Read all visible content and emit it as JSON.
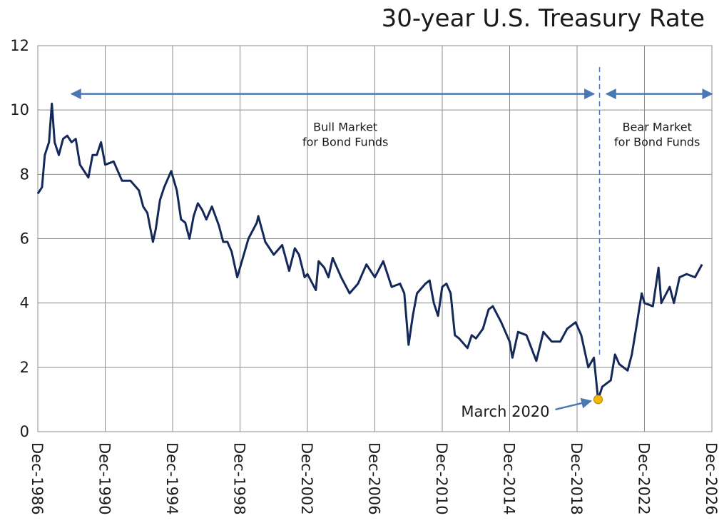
{
  "chart_data": {
    "type": "line",
    "title": "30-year U.S. Treasury Rate",
    "xlabel": "",
    "ylabel": "",
    "ylim": [
      0,
      12
    ],
    "yticks": [
      0,
      2,
      4,
      6,
      8,
      10,
      12
    ],
    "xlim": [
      "1986-12",
      "2026-12"
    ],
    "xtick_labels": [
      "Dec-1986",
      "Dec-1990",
      "Dec-1994",
      "Dec-1998",
      "Dec-2002",
      "Dec-2006",
      "Dec-2010",
      "Dec-2014",
      "Dec-2018",
      "Dec-2022",
      "Dec-2026"
    ],
    "grid": true,
    "series": [
      {
        "color": "#14285a",
        "points": [
          [
            "1986-12",
            7.4
          ],
          [
            "1987-03",
            7.6
          ],
          [
            "1987-05",
            8.6
          ],
          [
            "1987-08",
            9.0
          ],
          [
            "1987-10",
            10.2
          ],
          [
            "1987-12",
            9.0
          ],
          [
            "1988-03",
            8.6
          ],
          [
            "1988-06",
            9.1
          ],
          [
            "1988-09",
            9.2
          ],
          [
            "1988-12",
            9.0
          ],
          [
            "1989-03",
            9.1
          ],
          [
            "1989-06",
            8.3
          ],
          [
            "1989-09",
            8.1
          ],
          [
            "1989-12",
            7.9
          ],
          [
            "1990-03",
            8.6
          ],
          [
            "1990-06",
            8.6
          ],
          [
            "1990-09",
            9.0
          ],
          [
            "1990-12",
            8.3
          ],
          [
            "1991-06",
            8.4
          ],
          [
            "1991-12",
            7.8
          ],
          [
            "1992-06",
            7.8
          ],
          [
            "1992-12",
            7.5
          ],
          [
            "1993-03",
            7.0
          ],
          [
            "1993-06",
            6.8
          ],
          [
            "1993-10",
            5.9
          ],
          [
            "1993-12",
            6.3
          ],
          [
            "1994-03",
            7.2
          ],
          [
            "1994-06",
            7.6
          ],
          [
            "1994-11",
            8.1
          ],
          [
            "1995-03",
            7.5
          ],
          [
            "1995-06",
            6.6
          ],
          [
            "1995-09",
            6.5
          ],
          [
            "1995-12",
            6.0
          ],
          [
            "1996-03",
            6.7
          ],
          [
            "1996-06",
            7.1
          ],
          [
            "1996-09",
            6.9
          ],
          [
            "1996-12",
            6.6
          ],
          [
            "1997-04",
            7.0
          ],
          [
            "1997-09",
            6.4
          ],
          [
            "1997-12",
            5.9
          ],
          [
            "1998-03",
            5.9
          ],
          [
            "1998-06",
            5.6
          ],
          [
            "1998-10",
            4.8
          ],
          [
            "1998-12",
            5.1
          ],
          [
            "1999-06",
            6.0
          ],
          [
            "1999-12",
            6.5
          ],
          [
            "2000-01",
            6.7
          ],
          [
            "2000-06",
            5.9
          ],
          [
            "2000-12",
            5.5
          ],
          [
            "2001-06",
            5.8
          ],
          [
            "2001-11",
            5.0
          ],
          [
            "2002-03",
            5.7
          ],
          [
            "2002-06",
            5.5
          ],
          [
            "2002-10",
            4.8
          ],
          [
            "2002-12",
            4.9
          ],
          [
            "2003-06",
            4.4
          ],
          [
            "2003-08",
            5.3
          ],
          [
            "2003-12",
            5.1
          ],
          [
            "2004-03",
            4.8
          ],
          [
            "2004-06",
            5.4
          ],
          [
            "2004-12",
            4.8
          ],
          [
            "2005-06",
            4.3
          ],
          [
            "2005-12",
            4.6
          ],
          [
            "2006-06",
            5.2
          ],
          [
            "2006-12",
            4.8
          ],
          [
            "2007-06",
            5.3
          ],
          [
            "2007-12",
            4.5
          ],
          [
            "2008-06",
            4.6
          ],
          [
            "2008-09",
            4.3
          ],
          [
            "2008-12",
            2.7
          ],
          [
            "2009-03",
            3.6
          ],
          [
            "2009-06",
            4.3
          ],
          [
            "2009-12",
            4.6
          ],
          [
            "2010-03",
            4.7
          ],
          [
            "2010-06",
            4.0
          ],
          [
            "2010-09",
            3.6
          ],
          [
            "2010-12",
            4.5
          ],
          [
            "2011-03",
            4.6
          ],
          [
            "2011-06",
            4.3
          ],
          [
            "2011-09",
            3.0
          ],
          [
            "2011-12",
            2.9
          ],
          [
            "2012-06",
            2.6
          ],
          [
            "2012-09",
            3.0
          ],
          [
            "2012-12",
            2.9
          ],
          [
            "2013-05",
            3.2
          ],
          [
            "2013-09",
            3.8
          ],
          [
            "2013-12",
            3.9
          ],
          [
            "2014-06",
            3.4
          ],
          [
            "2014-12",
            2.8
          ],
          [
            "2015-02",
            2.3
          ],
          [
            "2015-06",
            3.1
          ],
          [
            "2015-12",
            3.0
          ],
          [
            "2016-07",
            2.2
          ],
          [
            "2016-12",
            3.1
          ],
          [
            "2017-06",
            2.8
          ],
          [
            "2017-12",
            2.8
          ],
          [
            "2018-05",
            3.2
          ],
          [
            "2018-11",
            3.4
          ],
          [
            "2019-03",
            3.0
          ],
          [
            "2019-08",
            2.0
          ],
          [
            "2019-12",
            2.3
          ],
          [
            "2020-03",
            1.0
          ],
          [
            "2020-06",
            1.4
          ],
          [
            "2020-12",
            1.6
          ],
          [
            "2021-03",
            2.4
          ],
          [
            "2021-06",
            2.1
          ],
          [
            "2021-12",
            1.9
          ],
          [
            "2022-03",
            2.4
          ],
          [
            "2022-06",
            3.2
          ],
          [
            "2022-10",
            4.3
          ],
          [
            "2022-12",
            4.0
          ],
          [
            "2023-06",
            3.9
          ],
          [
            "2023-10",
            5.1
          ],
          [
            "2023-12",
            4.0
          ],
          [
            "2024-06",
            4.5
          ],
          [
            "2024-09",
            4.0
          ],
          [
            "2025-01",
            4.8
          ],
          [
            "2025-06",
            4.9
          ],
          [
            "2025-12",
            4.8
          ],
          [
            "2026-05",
            5.2
          ]
        ]
      }
    ],
    "annotations": [
      {
        "text_lines": [
          "Bull Market",
          "for Bond Funds"
        ],
        "from": "1988-12",
        "to": "2019-12",
        "arrow_y": 10.5,
        "text_x": "2005-03"
      },
      {
        "text_lines": [
          "Bear Market",
          "for Bond Funds"
        ],
        "from": "2020-09",
        "to": "2026-12",
        "arrow_y": 10.5,
        "text_x": "2023-09"
      },
      {
        "text": "March 2020",
        "point": [
          "2020-03",
          1.0
        ],
        "marker_color": "#f5b800"
      }
    ],
    "divider_date": "2020-04"
  }
}
